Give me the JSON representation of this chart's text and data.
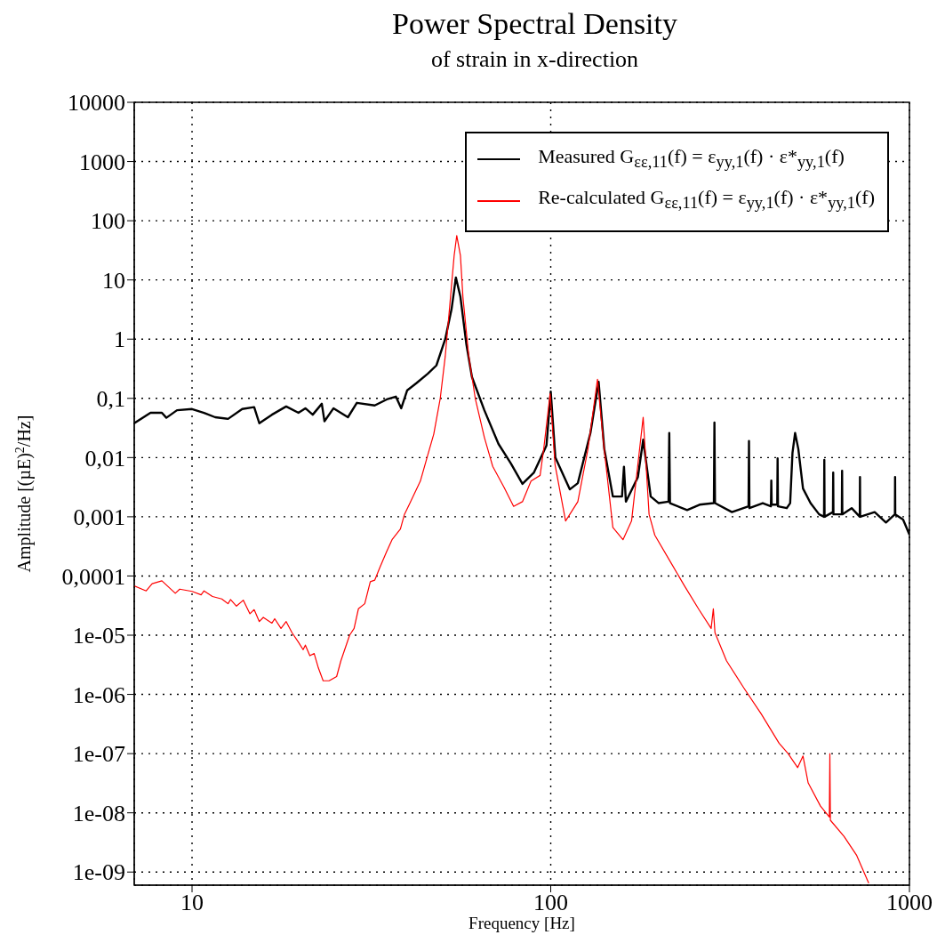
{
  "chart_data": {
    "type": "line",
    "title": "Power Spectral Density",
    "subtitle": "of strain in x-direction",
    "xlabel": "Frequency [Hz]",
    "ylabel": "Amplitude [(µE)$^{2}$/Hz]",
    "log": "xy",
    "grid": true,
    "legend": "top right",
    "line_style": "solid",
    "marker": "none",
    "xlim": [
      6.9,
      1000
    ],
    "xticks": [
      10,
      100,
      1000
    ],
    "ylim": [
      6e-10,
      10000
    ],
    "yticks": [
      10000,
      1000,
      100,
      10,
      1,
      {
        "value": 0.1,
        "label": "0,1"
      },
      {
        "value": 0.01,
        "label": "0,01"
      },
      {
        "value": 0.001,
        "label": "0,001"
      },
      {
        "value": 0.0001,
        "label": "0,0001"
      },
      {
        "value": 1e-05,
        "label": "1e-05"
      },
      {
        "value": 1e-06,
        "label": "1e-06"
      },
      {
        "value": 1e-07,
        "label": "1e-07"
      },
      {
        "value": 1e-08,
        "label": "1e-08"
      },
      {
        "value": 1e-09,
        "label": "1e-09"
      }
    ],
    "series": [
      {
        "name": "Measured G$_{εε,11}$(f) = ε$_{yy,1}$(f) · ε*$_{yy,1}$(f)",
        "color": "#000000",
        "x": [
          6.9,
          7.66,
          8.24,
          8.48,
          9.08,
          10,
          10.8,
          11.6,
          12.6,
          13.8,
          14.9,
          15.4,
          16.7,
          18.3,
          19.8,
          20.7,
          21.7,
          23,
          23.4,
          24.8,
          27.2,
          28.8,
          32.3,
          34.9,
          37,
          38.3,
          39.8,
          42.2,
          45.4,
          48,
          50.8,
          52.9,
          54.4,
          56,
          58.2,
          60.3,
          65.3,
          71.5,
          77.4,
          83.4,
          89.8,
          97.3,
          100,
          103,
          113,
          119,
          129,
          136,
          141,
          149,
          158,
          160,
          162,
          175,
          181,
          190,
          200,
          213,
          214,
          215,
          240,
          260,
          285,
          286,
          287,
          320,
          356,
          357,
          358,
          390,
          411,
          412,
          413,
          428,
          429,
          430,
          455,
          465,
          472,
          480,
          490,
          505,
          530,
          560,
          578,
          579,
          580,
          612,
          613,
          614,
          648,
          649,
          650,
          690,
          727,
          728,
          729,
          800,
          860,
          911,
          912,
          913,
          960,
          1000
        ],
        "values": [
          0.038,
          0.057,
          0.057,
          0.047,
          0.063,
          0.066,
          0.057,
          0.048,
          0.045,
          0.066,
          0.071,
          0.038,
          0.053,
          0.073,
          0.057,
          0.068,
          0.053,
          0.081,
          0.041,
          0.068,
          0.048,
          0.084,
          0.076,
          0.096,
          0.107,
          0.068,
          0.137,
          0.18,
          0.26,
          0.36,
          1.0,
          3.2,
          11,
          5.2,
          0.81,
          0.23,
          0.063,
          0.017,
          0.008,
          0.0036,
          0.0056,
          0.016,
          0.13,
          0.01,
          0.0029,
          0.0037,
          0.026,
          0.19,
          0.014,
          0.0022,
          0.0022,
          0.007,
          0.0018,
          0.0047,
          0.02,
          0.0022,
          0.0017,
          0.0018,
          0.026,
          0.0017,
          0.0013,
          0.0016,
          0.0017,
          0.039,
          0.0017,
          0.0012,
          0.0015,
          0.019,
          0.0014,
          0.0017,
          0.0015,
          0.0041,
          0.0016,
          0.0016,
          0.0097,
          0.0015,
          0.0014,
          0.0017,
          0.012,
          0.026,
          0.014,
          0.003,
          0.0017,
          0.0011,
          0.001,
          0.0091,
          0.001,
          0.0012,
          0.0056,
          0.0011,
          0.0011,
          0.006,
          0.0011,
          0.0014,
          0.001,
          0.0047,
          0.001,
          0.0012,
          0.0008,
          0.0011,
          0.0047,
          0.0011,
          0.0009,
          0.0005
        ]
      },
      {
        "name": "Re-calculated G$_{εε,11}$(f) = ε$_{yy,1}$(f) · ε*$_{yy,1}$(f)",
        "color": "#ff0000",
        "x": [
          6.9,
          7.45,
          7.74,
          8.24,
          8.98,
          9.24,
          10,
          10.6,
          10.8,
          11.4,
          12.1,
          12.6,
          12.8,
          13.3,
          13.9,
          14.5,
          14.9,
          15.4,
          15.8,
          16.7,
          17,
          17.7,
          18.3,
          19,
          19.8,
          20.4,
          20.7,
          21.3,
          21.9,
          22.5,
          23.2,
          24.1,
          25.3,
          26,
          27.5,
          28.3,
          29.1,
          30.3,
          31.4,
          32.3,
          33.4,
          34.9,
          36.1,
          38.1,
          39.1,
          40.5,
          43.3,
          45.4,
          47.2,
          49.2,
          50.8,
          52.3,
          53.8,
          54.7,
          56,
          56.9,
          59.1,
          61.6,
          65.3,
          68.9,
          74.2,
          78.8,
          83.4,
          88.1,
          93.4,
          95.6,
          99.6,
          102.8,
          110,
          119,
          127,
          135,
          140,
          149,
          159,
          168,
          181,
          188,
          195,
          216,
          236,
          259,
          280,
          284,
          287,
          309,
          345,
          386,
          433,
          459,
          488,
          505,
          522,
          565,
          598,
          600,
          602,
          657,
          713,
          770
        ],
        "values": [
          6.8e-05,
          5.6e-05,
          7.4e-05,
          8.3e-05,
          5.1e-05,
          6e-05,
          5.5e-05,
          4.8e-05,
          5.6e-05,
          4.5e-05,
          4.1e-05,
          3.4e-05,
          4e-05,
          3.1e-05,
          3.9e-05,
          2.3e-05,
          2.7e-05,
          1.7e-05,
          2e-05,
          1.6e-05,
          1.9e-05,
          1.3e-05,
          1.7e-05,
          1.1e-05,
          7.6e-06,
          5.7e-06,
          6.8e-06,
          4.5e-06,
          4.9e-06,
          2.8e-06,
          1.7e-06,
          1.7e-06,
          2e-06,
          3.7e-06,
          1e-05,
          1.3e-05,
          2.8e-05,
          3.4e-05,
          8e-05,
          8.5e-05,
          0.00014,
          0.00026,
          0.00041,
          0.00062,
          0.0011,
          0.0017,
          0.004,
          0.011,
          0.025,
          0.1,
          0.51,
          3.7,
          26,
          56,
          26,
          5.2,
          0.51,
          0.1,
          0.022,
          0.0071,
          0.0031,
          0.0015,
          0.0018,
          0.004,
          0.005,
          0.014,
          0.12,
          0.0076,
          0.00085,
          0.0018,
          0.014,
          0.21,
          0.02,
          0.00066,
          0.00041,
          0.00085,
          0.048,
          0.0011,
          0.00049,
          0.00017,
          6.8e-05,
          2.7e-05,
          1.3e-05,
          2.8e-05,
          1.1e-05,
          3.7e-06,
          1.3e-06,
          4.7e-07,
          1.5e-07,
          1e-07,
          5.8e-08,
          9.1e-08,
          3.2e-08,
          1.3e-08,
          8.5e-09,
          1e-07,
          7.5e-09,
          4e-09,
          1.9e-09,
          6.5e-10
        ]
      }
    ]
  }
}
